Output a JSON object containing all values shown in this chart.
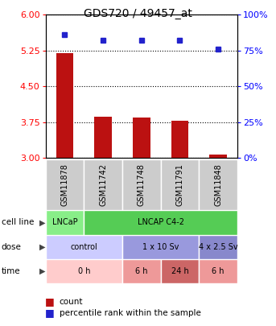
{
  "title": "GDS720 / 49457_at",
  "samples": [
    "GSM11878",
    "GSM11742",
    "GSM11748",
    "GSM11791",
    "GSM11848"
  ],
  "count_values": [
    5.2,
    3.87,
    3.85,
    3.78,
    3.07
  ],
  "percentile_values": [
    86,
    82,
    82,
    82,
    76
  ],
  "ylim_left": [
    3,
    6
  ],
  "ylim_right": [
    0,
    100
  ],
  "yticks_left": [
    3,
    3.75,
    4.5,
    5.25,
    6
  ],
  "yticks_right": [
    0,
    25,
    50,
    75,
    100
  ],
  "bar_color": "#bb1111",
  "dot_color": "#2222cc",
  "cell_line_items": [
    {
      "start": 0,
      "end": 1,
      "label": "LNCaP",
      "color": "#88ee88"
    },
    {
      "start": 1,
      "end": 5,
      "label": "LNCAP C4-2",
      "color": "#55cc55"
    }
  ],
  "dose_items": [
    {
      "start": 0,
      "end": 2,
      "label": "control",
      "color": "#ccccff"
    },
    {
      "start": 2,
      "end": 4,
      "label": "1 x 10 Sv",
      "color": "#9999dd"
    },
    {
      "start": 4,
      "end": 5,
      "label": "4 x 2.5 Sv",
      "color": "#8888cc"
    }
  ],
  "time_items": [
    {
      "start": 0,
      "end": 2,
      "label": "0 h",
      "color": "#ffcccc"
    },
    {
      "start": 2,
      "end": 3,
      "label": "6 h",
      "color": "#ee9999"
    },
    {
      "start": 3,
      "end": 4,
      "label": "24 h",
      "color": "#cc6666"
    },
    {
      "start": 4,
      "end": 5,
      "label": "6 h",
      "color": "#ee9999"
    }
  ],
  "sample_bg_color": "#cccccc",
  "grid_color": "#555555",
  "row_labels": [
    "cell line",
    "dose",
    "time"
  ],
  "legend_items": [
    {
      "color": "#bb1111",
      "label": "count"
    },
    {
      "color": "#2222cc",
      "label": "percentile rank within the sample"
    }
  ]
}
